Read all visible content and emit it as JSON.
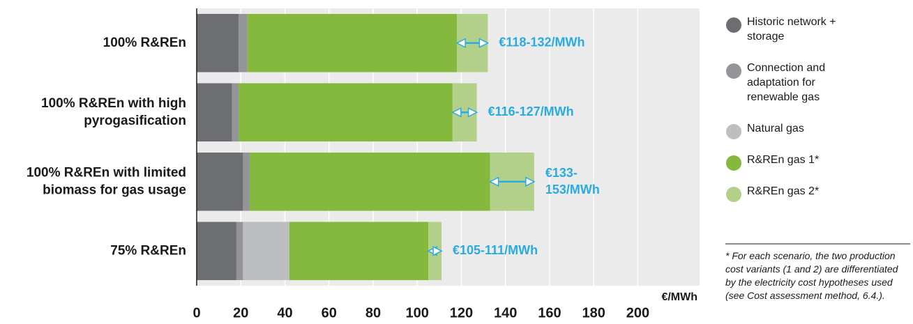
{
  "chart_data": {
    "type": "stacked-barh",
    "categories": [
      "100% R&REn",
      "100% R&REn with high pyrogasification",
      "100% R&REn with limited biomass for gas usage",
      "75% R&REn"
    ],
    "series": [
      {
        "name": "Historic network + storage",
        "color": "#6d6e71",
        "values": [
          19,
          16,
          21,
          18
        ]
      },
      {
        "name": "Connection and adaptation for renewable gas",
        "color": "#939598",
        "values": [
          4,
          3,
          3,
          3
        ]
      },
      {
        "name": "Natural gas",
        "color": "#bcbec0",
        "values": [
          0,
          0,
          0,
          21
        ]
      },
      {
        "name": "R&REn gas 1*",
        "color": "#84b93e",
        "values": [
          95,
          97,
          109,
          63
        ]
      },
      {
        "name": "R&REn gas 2*",
        "color": "#b3d08a",
        "values": [
          14,
          11,
          20,
          6
        ]
      }
    ],
    "range_annotations": [
      {
        "low": 118,
        "high": 132,
        "label": "€118-132/MWh"
      },
      {
        "low": 116,
        "high": 127,
        "label": "€116-127/MWh"
      },
      {
        "low": 133,
        "high": 153,
        "label": "€133-153/MWh"
      },
      {
        "low": 105,
        "high": 111,
        "label": "€105-111/MWh"
      }
    ],
    "annotation_color": "#29abe2",
    "xlabel": "€/MWh",
    "xlim": [
      0,
      228
    ],
    "xticks": [
      0,
      20,
      40,
      60,
      80,
      100,
      120,
      140,
      160,
      180,
      200
    ],
    "grid": true,
    "legend": "right",
    "footnote": "* For each scenario, the two production cost variants (1 and 2) are differentiated by the electricity cost hypotheses used (see Cost assessment method, 6.4.)."
  }
}
